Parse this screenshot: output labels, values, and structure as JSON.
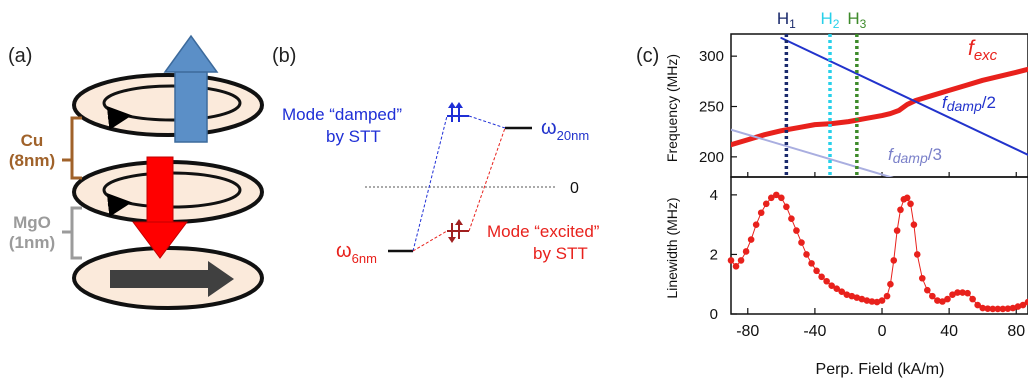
{
  "panel_a": {
    "label": "(a)",
    "cu_label_line1": "Cu",
    "cu_label_line2": "(8nm)",
    "mgo_label_line1": "MgO",
    "mgo_label_line2": "(1nm)",
    "colors": {
      "cu": "#a0622a",
      "mgo": "#9b9b9b",
      "disk_fill": "#fbeadb",
      "arrow_top": "#5b8fc7",
      "arrow_mid": "#ff0000",
      "arrow_bottom": "#404040"
    }
  },
  "panel_b": {
    "label": "(b)",
    "mode_damped_line1": "Mode “damped”",
    "mode_damped_line2": "by STT",
    "mode_excited_line1": "Mode “excited”",
    "mode_excited_line2": "by STT",
    "omega_20_symbol": "ω",
    "omega_20_sub": "20nm",
    "omega_6_symbol": "ω",
    "omega_6_sub": "6nm",
    "zero_label": "0",
    "colors": {
      "damped": "#1f2fd6",
      "excited": "#e8211c",
      "omega": "#2233cc",
      "omega6": "#e8211c"
    }
  },
  "panel_c": {
    "label": "(c)",
    "markers": [
      {
        "name": "H",
        "sub": "1",
        "color": "#1a2a6c"
      },
      {
        "name": "H",
        "sub": "2",
        "color": "#27d0ea"
      },
      {
        "name": "H",
        "sub": "3",
        "color": "#3d8a2a"
      }
    ],
    "xlabel": "Perp. Field (kA/m)",
    "top_ylabel": "Frequency (MHz)",
    "bottom_ylabel": "Linewidth (MHz)",
    "label_fexc": "f",
    "label_fexc_sub": "exc",
    "label_fdamp2": "f",
    "label_fdamp2_sub": "damp",
    "label_fdamp2_tail": "/2",
    "label_fdamp3": "f",
    "label_fdamp3_sub": "damp",
    "label_fdamp3_tail": "/3",
    "x_ticks": [
      "-80",
      "-40",
      "0",
      "40",
      "80"
    ],
    "top_y_ticks": [
      "200",
      "250",
      "300"
    ],
    "bottom_y_ticks": [
      "0",
      "2",
      "4"
    ]
  },
  "chart_data": [
    {
      "type": "line",
      "title": "",
      "xlabel": "Perp. Field (kA/m)",
      "ylabel": "Frequency (MHz)",
      "xlim": [
        -90,
        87
      ],
      "ylim": [
        180,
        322
      ],
      "vertical_markers": [
        {
          "label": "H1",
          "x": -57
        },
        {
          "label": "H2",
          "x": -31
        },
        {
          "label": "H3",
          "x": -15
        }
      ],
      "series": [
        {
          "name": "fexc",
          "color": "#e8211c",
          "x": [
            -90,
            -80,
            -70,
            -60,
            -50,
            -40,
            -30,
            -20,
            -10,
            0,
            5,
            10,
            15,
            20,
            30,
            40,
            50,
            60,
            70,
            80,
            87
          ],
          "y": [
            212,
            217,
            222,
            226,
            229,
            232,
            233,
            235,
            238,
            241,
            243,
            246,
            252,
            256,
            261,
            266,
            271,
            276,
            280,
            284,
            287
          ]
        },
        {
          "name": "fdamp/2",
          "color": "#2233cc",
          "x": [
            -60,
            87
          ],
          "y": [
            318,
            202
          ]
        },
        {
          "name": "fdamp/3",
          "color": "#a9aee0",
          "x": [
            -90,
            15
          ],
          "y": [
            227,
            175
          ]
        }
      ]
    },
    {
      "type": "scatter",
      "title": "",
      "xlabel": "Perp. Field (kA/m)",
      "ylabel": "Linewidth (MHz)",
      "xlim": [
        -90,
        87
      ],
      "ylim": [
        0,
        4.6
      ],
      "series": [
        {
          "name": "linewidth",
          "color": "#e8211c",
          "x": [
            -90,
            -87,
            -84,
            -81,
            -78,
            -75,
            -72,
            -69,
            -66,
            -63,
            -60,
            -57,
            -54,
            -51,
            -48,
            -45,
            -42,
            -39,
            -36,
            -33,
            -30,
            -27,
            -24,
            -21,
            -18,
            -15,
            -12,
            -9,
            -6,
            -3,
            0,
            3,
            5,
            7,
            9,
            11,
            13,
            15,
            17,
            19,
            21,
            24,
            27,
            30,
            33,
            36,
            39,
            42,
            45,
            48,
            51,
            54,
            57,
            60,
            63,
            66,
            69,
            72,
            75,
            78,
            81,
            84,
            87
          ],
          "y": [
            1.8,
            1.6,
            1.8,
            2.1,
            2.5,
            3.0,
            3.4,
            3.7,
            3.9,
            4.0,
            3.9,
            3.6,
            3.2,
            2.8,
            2.4,
            2.0,
            1.7,
            1.45,
            1.25,
            1.1,
            0.95,
            0.85,
            0.75,
            0.65,
            0.6,
            0.55,
            0.5,
            0.45,
            0.42,
            0.4,
            0.45,
            0.6,
            1.0,
            1.8,
            2.8,
            3.5,
            3.85,
            3.9,
            3.7,
            3.0,
            2.0,
            1.2,
            0.8,
            0.6,
            0.45,
            0.42,
            0.5,
            0.65,
            0.72,
            0.72,
            0.7,
            0.5,
            0.3,
            0.2,
            0.18,
            0.17,
            0.17,
            0.17,
            0.18,
            0.2,
            0.25,
            0.3,
            0.4
          ]
        }
      ]
    }
  ]
}
